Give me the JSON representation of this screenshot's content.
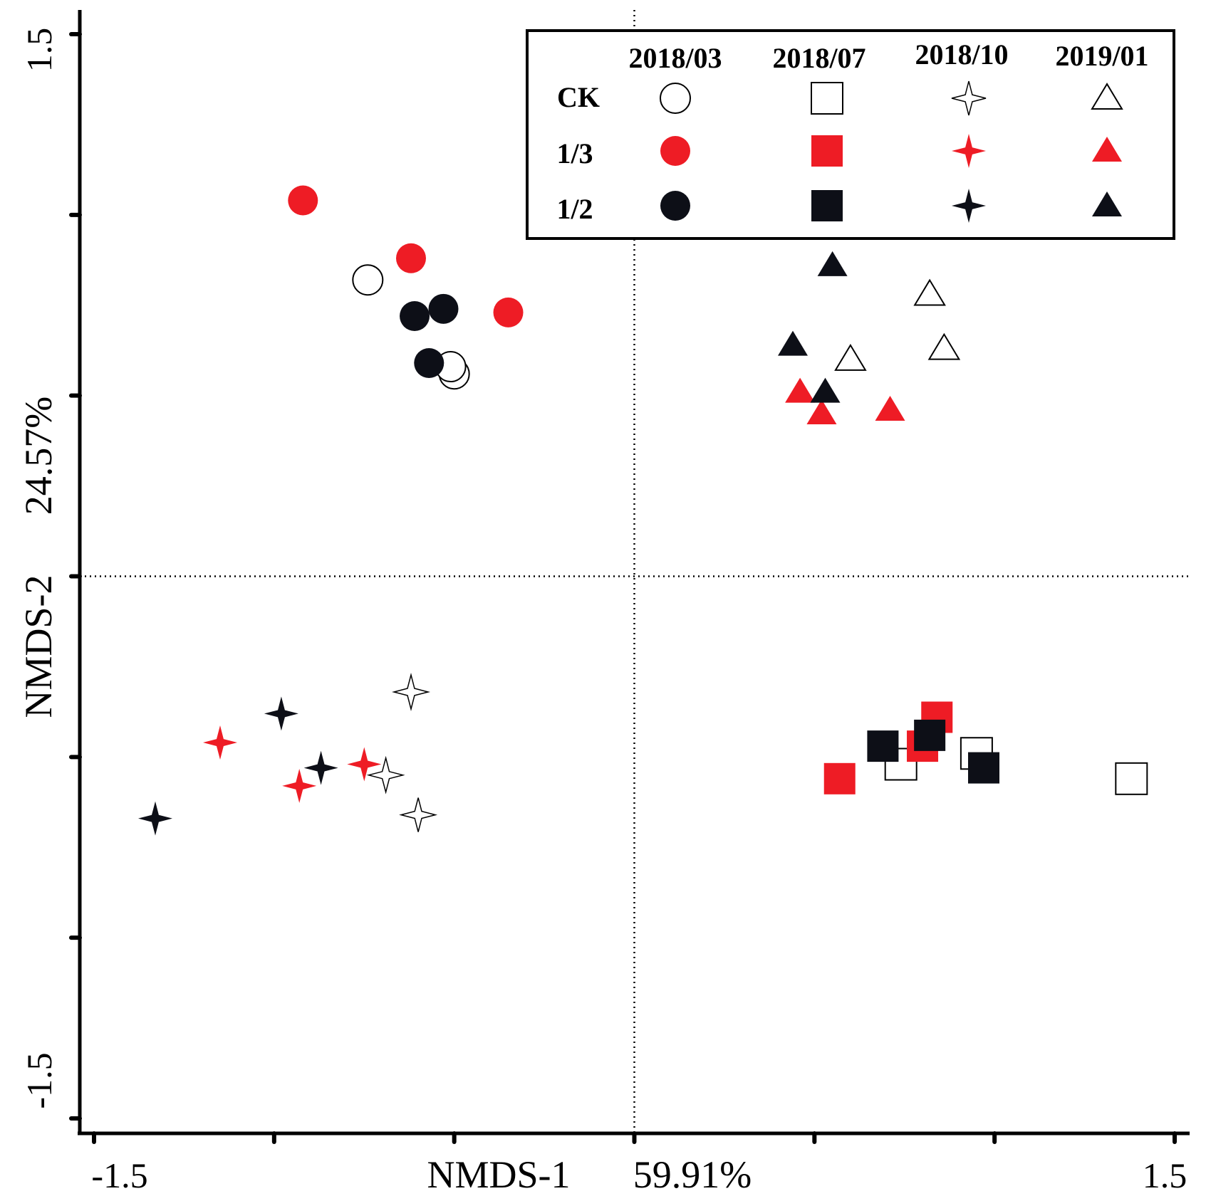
{
  "chart_data": {
    "type": "scatter",
    "title": "",
    "xlabel": "NMDS-1",
    "xlabel_pct": "59.91%",
    "ylabel": "NMDS-2",
    "ylabel_pct": "24.57%",
    "xlim": [
      -1.5,
      1.5
    ],
    "ylim": [
      -1.5,
      1.5
    ],
    "x_tick_labels": [
      "-1.5",
      "1.5"
    ],
    "y_tick_labels": [
      "1.5",
      "-1.5"
    ],
    "reference_lines": {
      "x": 0,
      "y": 0,
      "style": "dotted"
    },
    "legend": {
      "placement": "top-right",
      "column_headers": [
        "2018/03",
        "2018/07",
        "2018/10",
        "2019/01"
      ],
      "row_headers": [
        "CK",
        "1/3",
        "1/2"
      ]
    },
    "shapes": {
      "2018/03": "circle",
      "2018/07": "square",
      "2018/10": "star",
      "2019/01": "triangle"
    },
    "colors": {
      "CK": "#ffffff",
      "1/3": "#ee1c25",
      "1/2": "#0d0f17"
    },
    "series": [
      {
        "name": "CK 2018/03",
        "date": "2018/03",
        "treatment": "CK",
        "points": [
          [
            -0.74,
            0.82
          ],
          [
            -0.5,
            0.56
          ],
          [
            -0.51,
            0.58
          ]
        ]
      },
      {
        "name": "1/3 2018/03",
        "date": "2018/03",
        "treatment": "1/3",
        "points": [
          [
            -0.92,
            1.04
          ],
          [
            -0.62,
            0.88
          ],
          [
            -0.35,
            0.73
          ]
        ]
      },
      {
        "name": "1/2 2018/03",
        "date": "2018/03",
        "treatment": "1/2",
        "points": [
          [
            -0.61,
            0.72
          ],
          [
            -0.53,
            0.74
          ],
          [
            -0.57,
            0.59
          ]
        ]
      },
      {
        "name": "CK 2018/07",
        "date": "2018/07",
        "treatment": "CK",
        "points": [
          [
            0.74,
            -0.52
          ],
          [
            0.95,
            -0.49
          ],
          [
            1.38,
            -0.56
          ]
        ]
      },
      {
        "name": "1/3 2018/07",
        "date": "2018/07",
        "treatment": "1/3",
        "points": [
          [
            0.57,
            -0.56
          ],
          [
            0.8,
            -0.47
          ],
          [
            0.84,
            -0.39
          ]
        ]
      },
      {
        "name": "1/2 2018/07",
        "date": "2018/07",
        "treatment": "1/2",
        "points": [
          [
            0.69,
            -0.47
          ],
          [
            0.82,
            -0.44
          ],
          [
            0.97,
            -0.53
          ]
        ]
      },
      {
        "name": "CK 2018/10",
        "date": "2018/10",
        "treatment": "CK",
        "points": [
          [
            -0.62,
            -0.32
          ],
          [
            -0.69,
            -0.55
          ],
          [
            -0.6,
            -0.66
          ]
        ]
      },
      {
        "name": "1/3 2018/10",
        "date": "2018/10",
        "treatment": "1/3",
        "points": [
          [
            -1.15,
            -0.46
          ],
          [
            -0.93,
            -0.58
          ],
          [
            -0.75,
            -0.52
          ]
        ]
      },
      {
        "name": "1/2 2018/10",
        "date": "2018/10",
        "treatment": "1/2",
        "points": [
          [
            -0.98,
            -0.38
          ],
          [
            -0.87,
            -0.53
          ],
          [
            -1.33,
            -0.67
          ]
        ]
      },
      {
        "name": "CK 2019/01",
        "date": "2019/01",
        "treatment": "CK",
        "points": [
          [
            0.82,
            0.78
          ],
          [
            0.6,
            0.6
          ],
          [
            0.86,
            0.63
          ]
        ]
      },
      {
        "name": "1/3 2019/01",
        "date": "2019/01",
        "treatment": "1/3",
        "points": [
          [
            0.46,
            0.51
          ],
          [
            0.52,
            0.45
          ],
          [
            0.71,
            0.46
          ]
        ]
      },
      {
        "name": "1/2 2019/01",
        "date": "2019/01",
        "treatment": "1/2",
        "points": [
          [
            0.55,
            0.86
          ],
          [
            0.44,
            0.64
          ],
          [
            0.53,
            0.51
          ]
        ]
      }
    ]
  }
}
